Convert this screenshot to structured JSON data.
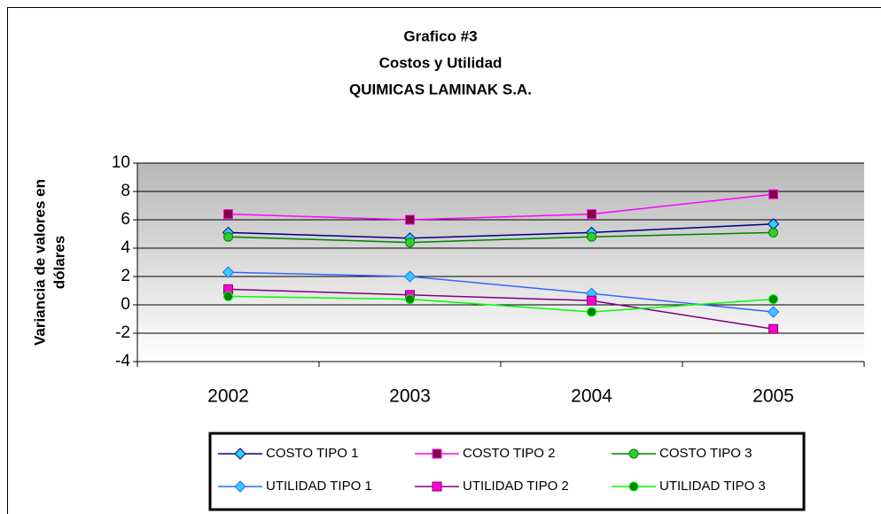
{
  "chart_data": {
    "type": "line",
    "title": [
      "Grafico #3",
      "Costos y Utilidad",
      "QUIMICAS LAMINAK S.A."
    ],
    "y_label": [
      "Variancia de valores en",
      "dólares"
    ],
    "categories": [
      "2002",
      "2003",
      "2004",
      "2005"
    ],
    "ylim": [
      -4,
      10
    ],
    "yticks": [
      -4,
      -2,
      0,
      2,
      4,
      6,
      8,
      10
    ],
    "grid": true,
    "legend": "bottom",
    "series": [
      {
        "name": "COSTO TIPO 1",
        "color": "#000080",
        "marker": "diamond",
        "marker_color": "#33ccff",
        "values": [
          5.1,
          4.7,
          5.1,
          5.7
        ]
      },
      {
        "name": "COSTO TIPO 2",
        "color": "#ff00ff",
        "marker": "square",
        "marker_color": "#800040",
        "values": [
          6.4,
          6.0,
          6.4,
          7.8
        ]
      },
      {
        "name": "COSTO TIPO 3",
        "color": "#008000",
        "marker": "circle",
        "marker_color": "#33cc33",
        "values": [
          4.8,
          4.4,
          4.8,
          5.1
        ]
      },
      {
        "name": "UTILIDAD TIPO 1",
        "color": "#3366ff",
        "marker": "diamond",
        "marker_color": "#33ccff",
        "values": [
          2.3,
          2.0,
          0.8,
          -0.5
        ]
      },
      {
        "name": "UTILIDAD TIPO 2",
        "color": "#800080",
        "marker": "square",
        "marker_color": "#ff00cc",
        "values": [
          1.1,
          0.7,
          0.3,
          -1.7
        ]
      },
      {
        "name": "UTILIDAD TIPO 3",
        "color": "#00ff00",
        "marker": "circle",
        "marker_color": "#008000",
        "values": [
          0.6,
          0.4,
          -0.5,
          0.4
        ]
      }
    ]
  }
}
